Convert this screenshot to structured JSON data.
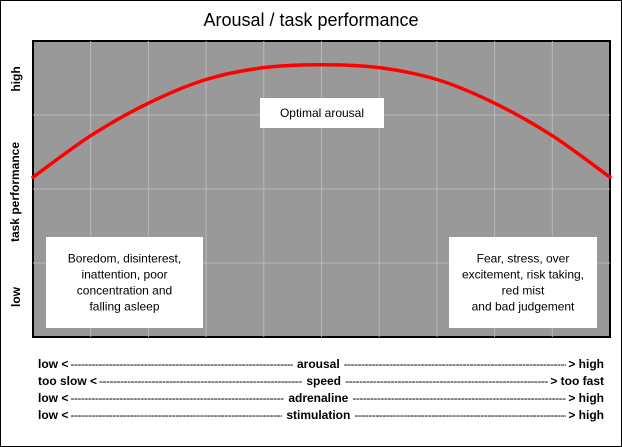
{
  "chart_data": {
    "type": "line",
    "title": "Arousal / task performance",
    "ylabel": "task performance",
    "y_tick_labels": [
      "high",
      "low"
    ],
    "ylim": [
      0,
      1
    ],
    "xlim": [
      0,
      1
    ],
    "grid": true,
    "colors": {
      "plot_bg": "#999999",
      "curve": "#ff0000",
      "grid": "#b8b8b8"
    },
    "series": [
      {
        "x": [
          0,
          0.1,
          0.2,
          0.3,
          0.4,
          0.5,
          0.6,
          0.7,
          0.8,
          0.9,
          1.0
        ],
        "values": [
          0.54,
          0.68,
          0.79,
          0.87,
          0.91,
          0.92,
          0.91,
          0.87,
          0.79,
          0.68,
          0.54
        ]
      }
    ],
    "annotations": [
      {
        "name": "optimal",
        "lines": [
          "Optimal arousal"
        ]
      },
      {
        "name": "low",
        "lines": [
          "Boredom, disinterest,",
          "inattention, poor",
          "concentration and",
          "falling asleep"
        ]
      },
      {
        "name": "high",
        "lines": [
          "Fear, stress, over",
          "excitement, risk taking,",
          "red mist",
          "and bad judgement"
        ]
      }
    ],
    "x_scales": [
      {
        "left": "low <",
        "middle": "arousal",
        "right": "> high"
      },
      {
        "left": "too slow <",
        "middle": "speed",
        "right": "> too fast"
      },
      {
        "left": "low <",
        "middle": "adrenaline",
        "right": "> high"
      },
      {
        "left": "low <",
        "middle": "stimulation",
        "right": "> high"
      }
    ]
  }
}
